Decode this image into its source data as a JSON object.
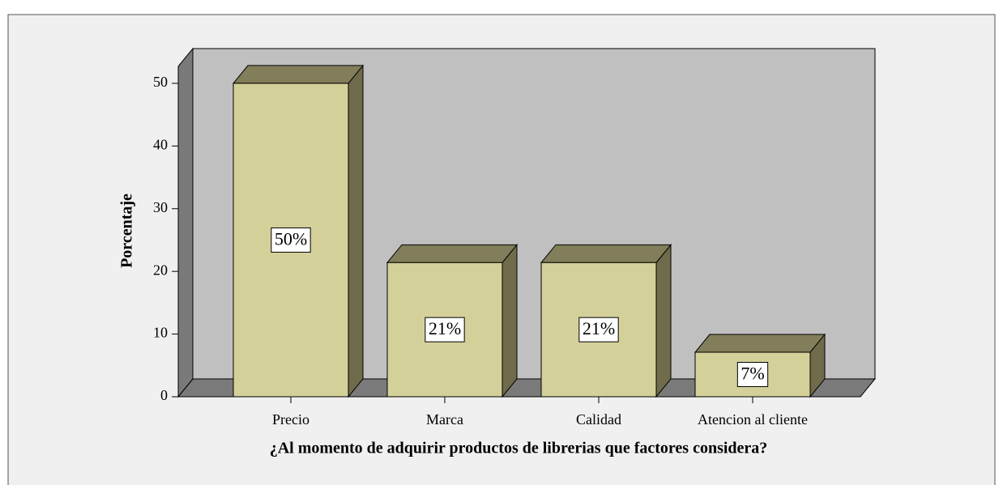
{
  "chart_data": {
    "type": "bar3d",
    "x_label": "¿Al momento de adquirir productos de librerias que factores considera?",
    "y_label": "Porcentaje",
    "categories": [
      "Precio",
      "Marca",
      "Calidad",
      "Atencion al cliente"
    ],
    "values": [
      50,
      21.4,
      21.4,
      7.1
    ],
    "value_labels": [
      "50%",
      "21%",
      "21%",
      "7%"
    ],
    "color": "#d4d09a",
    "ylim": [
      0,
      52.7
    ],
    "yticks": [
      0,
      10,
      20,
      30,
      40,
      50
    ]
  }
}
